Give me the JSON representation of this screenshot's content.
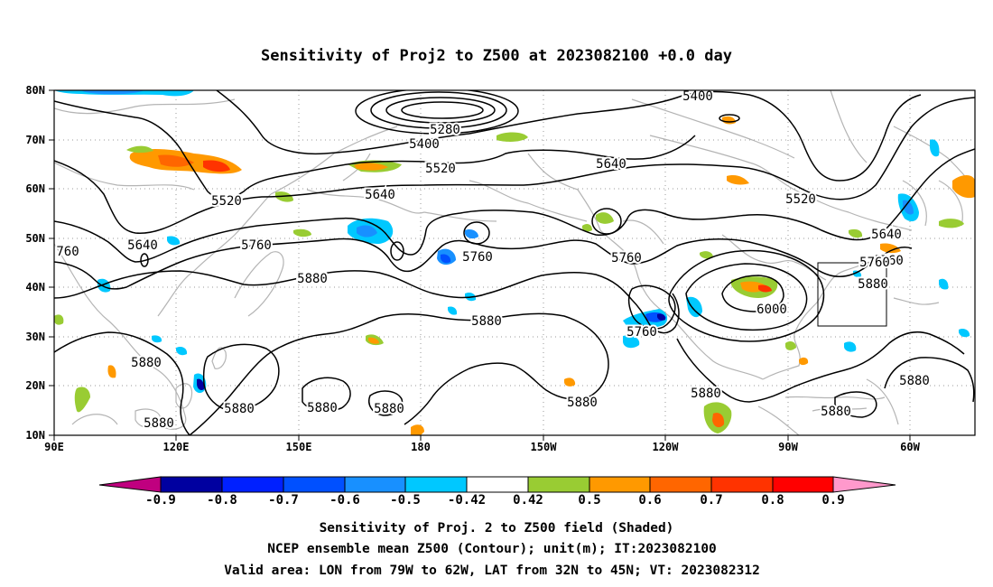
{
  "title": "Sensitivity of Proj2 to Z500 at 2023082100 +0.0 day",
  "map": {
    "lon_range": [
      "90E",
      "53W"
    ],
    "lat_range": [
      "10N",
      "80N"
    ],
    "lat_ticks": [
      "80N",
      "70N",
      "60N",
      "50N",
      "40N",
      "30N",
      "20N",
      "10N"
    ],
    "lon_ticks": [
      "90E",
      "120E",
      "150E",
      "180",
      "150W",
      "120W",
      "90W",
      "60W"
    ],
    "gridlines": "dotted",
    "valid_box": {
      "lon": [
        "79W",
        "62W"
      ],
      "lat": [
        "32N",
        "45N"
      ]
    }
  },
  "contours": {
    "labels": [
      "5400",
      "5280",
      "5400",
      "5520",
      "5640",
      "5520",
      "5520",
      "5640",
      "5640",
      "5760",
      "5640",
      "760",
      "5760",
      "5880",
      "5760",
      "5760",
      "5760",
      "5880",
      "6000",
      "5880",
      "5760",
      "5880",
      "5880",
      "5880",
      "5880",
      "5880",
      "5880",
      "5880",
      "5880",
      "5880"
    ]
  },
  "colorbar": {
    "tick_labels": [
      "-0.9",
      "-0.8",
      "-0.7",
      "-0.6",
      "-0.5",
      "-0.42",
      "0.42",
      "0.5",
      "0.6",
      "0.7",
      "0.8",
      "0.9"
    ],
    "colors": [
      "#c0007f",
      "#0000a0",
      "#0020ff",
      "#0050ff",
      "#1890ff",
      "#00c8ff",
      "#ffffff",
      "#99cc33",
      "#ff9900",
      "#ff6600",
      "#ff3300",
      "#ff0000",
      "#ff99cc"
    ]
  },
  "captions": [
    "Sensitivity of Proj. 2 to Z500 field (Shaded)",
    "NCEP ensemble mean Z500 (Contour); unit(m); IT:2023082100",
    "Valid area: LON from 79W to 62W, LAT from 32N to 45N; VT: 2023082312"
  ]
}
